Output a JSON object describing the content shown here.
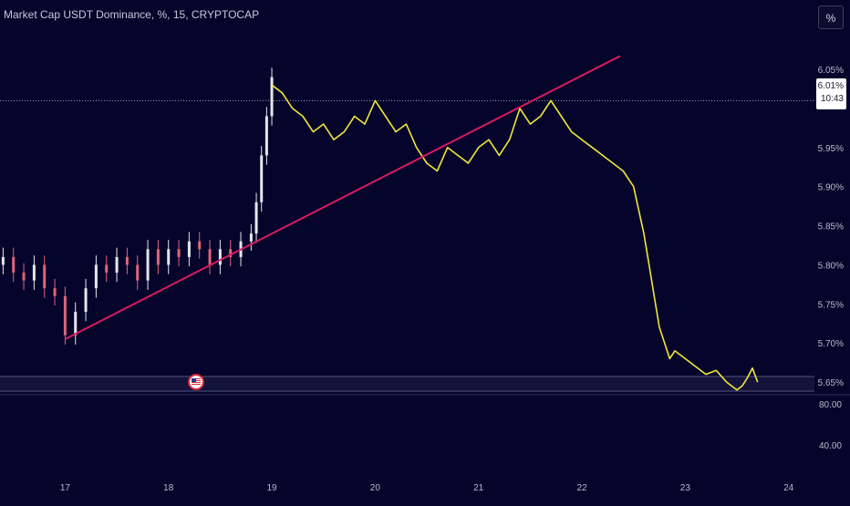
{
  "header": {
    "title": "Market Cap USDT Dominance, %, 15, CRYPTOCAP",
    "scale_button_label": "%"
  },
  "price_badge": {
    "value": "6.01%",
    "countdown": "10:43"
  },
  "colors": {
    "background": "#05042a",
    "line": "#f2e63c",
    "trendline": "#d81b60",
    "candle_up": "#e6e6ee",
    "candle_down": "#e0657a",
    "axis_text": "#b9bccc"
  },
  "event_marker": {
    "icon": "us-flag-icon"
  },
  "chart_data": [
    {
      "type": "line",
      "title": "Market Cap USDT Dominance, %, 15, CRYPTOCAP",
      "x_ticks": [
        "17",
        "18",
        "19",
        "20",
        "21",
        "22",
        "23",
        "24"
      ],
      "y_ticks": [
        "6.05%",
        "5.95%",
        "5.90%",
        "5.85%",
        "5.80%",
        "5.75%",
        "5.70%",
        "5.65%"
      ],
      "ylim": [
        5.635,
        6.085
      ],
      "xlim": [
        16.37,
        24.25
      ],
      "candles_segment": {
        "style": "candlestick",
        "x": [
          16.4,
          16.5,
          16.6,
          16.7,
          16.8,
          16.9,
          17.0,
          17.1,
          17.2,
          17.3,
          17.4,
          17.5,
          17.6,
          17.7,
          17.8,
          17.9,
          18.0,
          18.1,
          18.2,
          18.3,
          18.4,
          18.5,
          18.6,
          18.7,
          18.8,
          18.85,
          18.9,
          18.95,
          19.0
        ],
        "values": [
          5.81,
          5.79,
          5.78,
          5.8,
          5.77,
          5.76,
          5.71,
          5.74,
          5.77,
          5.8,
          5.79,
          5.81,
          5.8,
          5.78,
          5.82,
          5.8,
          5.82,
          5.81,
          5.83,
          5.82,
          5.8,
          5.82,
          5.81,
          5.83,
          5.84,
          5.88,
          5.94,
          5.99,
          6.04
        ]
      },
      "series": [
        {
          "x": [
            19.0,
            19.1,
            19.2,
            19.3,
            19.4,
            19.5,
            19.6,
            19.7,
            19.8,
            19.9,
            20.0,
            20.1,
            20.2,
            20.3,
            20.4,
            20.5,
            20.6,
            20.7,
            20.8,
            20.9,
            21.0,
            21.1,
            21.2,
            21.3,
            21.4,
            21.5,
            21.6,
            21.7,
            21.8,
            21.9,
            22.0,
            22.1,
            22.2,
            22.3,
            22.4,
            22.5,
            22.6,
            22.65,
            22.7,
            22.75,
            22.8,
            22.85,
            22.9,
            23.0,
            23.1,
            23.2,
            23.3,
            23.4,
            23.5,
            23.55,
            23.6,
            23.65,
            23.7
          ],
          "values": [
            6.03,
            6.02,
            6.0,
            5.99,
            5.97,
            5.98,
            5.96,
            5.97,
            5.99,
            5.98,
            6.01,
            5.99,
            5.97,
            5.98,
            5.95,
            5.93,
            5.92,
            5.95,
            5.94,
            5.93,
            5.95,
            5.96,
            5.94,
            5.96,
            6.0,
            5.98,
            5.99,
            6.01,
            5.99,
            5.97,
            5.96,
            5.95,
            5.94,
            5.93,
            5.92,
            5.9,
            5.84,
            5.8,
            5.76,
            5.72,
            5.7,
            5.68,
            5.69,
            5.68,
            5.67,
            5.66,
            5.665,
            5.65,
            5.64,
            5.645,
            5.655,
            5.668,
            5.65
          ]
        }
      ],
      "trendline": {
        "from": [
          17.0,
          5.705
        ],
        "to": [
          22.37,
          6.067
        ]
      },
      "horizontal_level": 6.01,
      "volume_pane": {
        "y_ticks": [
          "80.00",
          "40.00"
        ]
      },
      "grid": false
    }
  ]
}
